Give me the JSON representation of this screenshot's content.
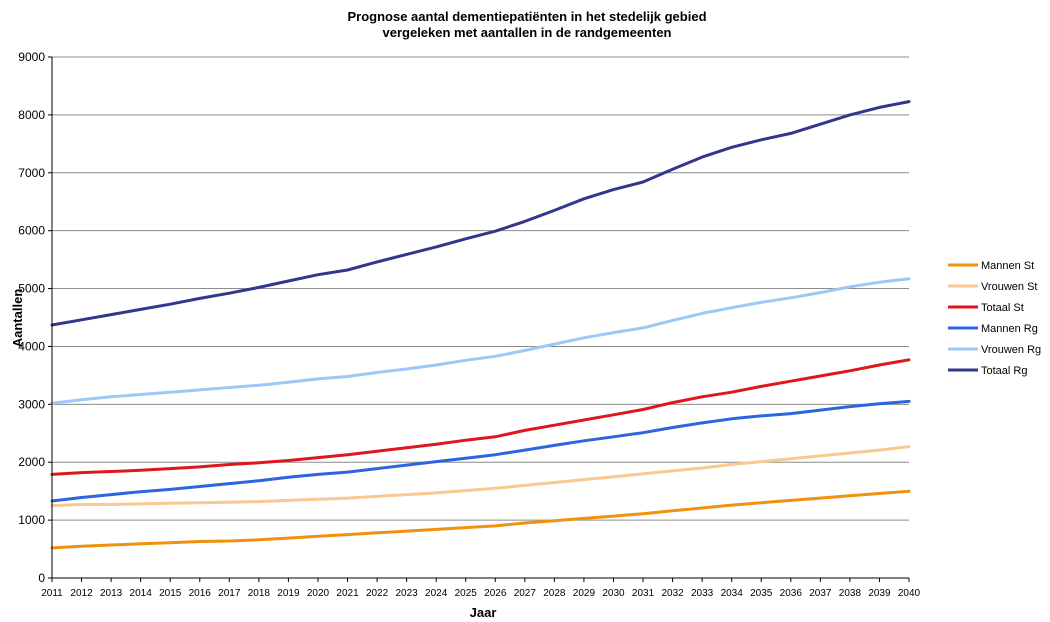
{
  "chart_data": {
    "type": "line",
    "title": "Prognose aantal dementiepatiënten in het stedelijk gebied",
    "subtitle": "vergeleken met aantallen in de randgemeenten",
    "xlabel": "Jaar",
    "ylabel": "Aantallen",
    "ylim": [
      0,
      9000
    ],
    "yticks": [
      0,
      1000,
      2000,
      3000,
      4000,
      5000,
      6000,
      7000,
      8000,
      9000
    ],
    "grid": true,
    "legend_position": "right",
    "x": [
      2011,
      2012,
      2013,
      2014,
      2015,
      2016,
      2017,
      2018,
      2019,
      2020,
      2021,
      2022,
      2023,
      2024,
      2025,
      2026,
      2027,
      2028,
      2029,
      2030,
      2031,
      2032,
      2033,
      2034,
      2035,
      2036,
      2037,
      2038,
      2039,
      2040
    ],
    "series": [
      {
        "name": "Mannen St",
        "color": "#f0920e",
        "values": [
          520,
          550,
          570,
          590,
          610,
          630,
          640,
          660,
          690,
          720,
          750,
          780,
          810,
          840,
          870,
          900,
          950,
          990,
          1030,
          1070,
          1110,
          1160,
          1210,
          1260,
          1300,
          1340,
          1380,
          1420,
          1460,
          1500
        ]
      },
      {
        "name": "Vrouwen St",
        "color": "#fac892",
        "values": [
          1250,
          1270,
          1270,
          1280,
          1290,
          1300,
          1310,
          1320,
          1340,
          1360,
          1380,
          1410,
          1440,
          1470,
          1510,
          1550,
          1600,
          1650,
          1700,
          1750,
          1800,
          1850,
          1900,
          1960,
          2010,
          2060,
          2110,
          2160,
          2210,
          2270
        ]
      },
      {
        "name": "Totaal St",
        "color": "#e0161d",
        "values": [
          1790,
          1820,
          1840,
          1860,
          1890,
          1920,
          1960,
          1990,
          2030,
          2080,
          2130,
          2190,
          2250,
          2310,
          2380,
          2440,
          2550,
          2640,
          2730,
          2820,
          2910,
          3030,
          3130,
          3210,
          3310,
          3400,
          3490,
          3580,
          3680,
          3770
        ]
      },
      {
        "name": "Mannen Rg",
        "color": "#2e64e0",
        "values": [
          1330,
          1390,
          1440,
          1490,
          1530,
          1580,
          1630,
          1680,
          1740,
          1790,
          1830,
          1890,
          1950,
          2010,
          2070,
          2130,
          2210,
          2290,
          2370,
          2440,
          2510,
          2600,
          2680,
          2750,
          2800,
          2840,
          2900,
          2960,
          3010,
          3050
        ]
      },
      {
        "name": "Vrouwen Rg",
        "color": "#9cc8f6",
        "values": [
          3020,
          3080,
          3130,
          3170,
          3210,
          3250,
          3290,
          3330,
          3380,
          3440,
          3480,
          3550,
          3610,
          3680,
          3760,
          3830,
          3930,
          4040,
          4150,
          4240,
          4320,
          4450,
          4570,
          4670,
          4760,
          4840,
          4930,
          5030,
          5110,
          5170
        ]
      },
      {
        "name": "Totaal Rg",
        "color": "#34358c",
        "values": [
          4370,
          4460,
          4550,
          4640,
          4730,
          4830,
          4920,
          5020,
          5130,
          5240,
          5320,
          5460,
          5590,
          5720,
          5860,
          5990,
          6160,
          6350,
          6550,
          6710,
          6840,
          7060,
          7270,
          7440,
          7570,
          7680,
          7840,
          8000,
          8130,
          8230
        ]
      }
    ]
  }
}
